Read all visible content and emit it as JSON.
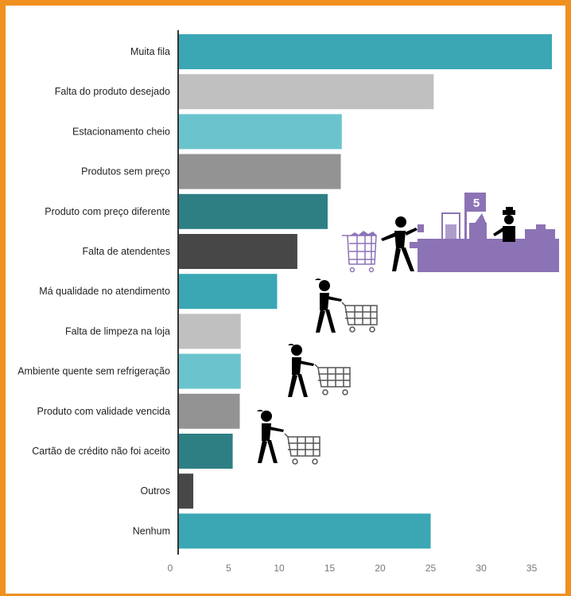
{
  "colors": {
    "border": "#f0901e",
    "palette": [
      "#3ba7b4",
      "#c0c0c0",
      "#6bc4cd",
      "#939393",
      "#2e7f84",
      "#474747"
    ],
    "illustration_primary": "#000000",
    "illustration_accent": "#8c73b5"
  },
  "chart_data": {
    "type": "bar",
    "orientation": "horizontal",
    "title": "",
    "xlabel": "",
    "ylabel": "",
    "categories": [
      "Muita fila",
      "Falta do produto desejado",
      "Estacionamento cheio",
      "Produtos sem preço",
      "Produto com preço diferente",
      "Falta de atendentes",
      "Má qualidade no atendimento",
      "Falta de limpeza na loja",
      "Ambiente quente sem refrigeração",
      "Produto com validade vencida",
      "Cartão de crédito não foi aceito",
      "Outros",
      "Nenhum"
    ],
    "values": [
      37,
      25.3,
      16.2,
      16.1,
      14.8,
      11.8,
      9.8,
      6.2,
      6.2,
      6.1,
      5.4,
      1.5,
      25
    ],
    "xlim": [
      0,
      37
    ],
    "ticks": [
      "0",
      "5",
      "10",
      "15",
      "20",
      "25",
      "30",
      "35"
    ],
    "tick_values": [
      0,
      5,
      10,
      15,
      20,
      25,
      30,
      35
    ],
    "grid": false,
    "legend": "none"
  },
  "illustration": {
    "register_number": "5",
    "icons": [
      "checkout-counter-icon",
      "cashier-icon",
      "customer-at-register-icon",
      "shopping-cart-icon",
      "shopper-with-cart-icon"
    ]
  }
}
